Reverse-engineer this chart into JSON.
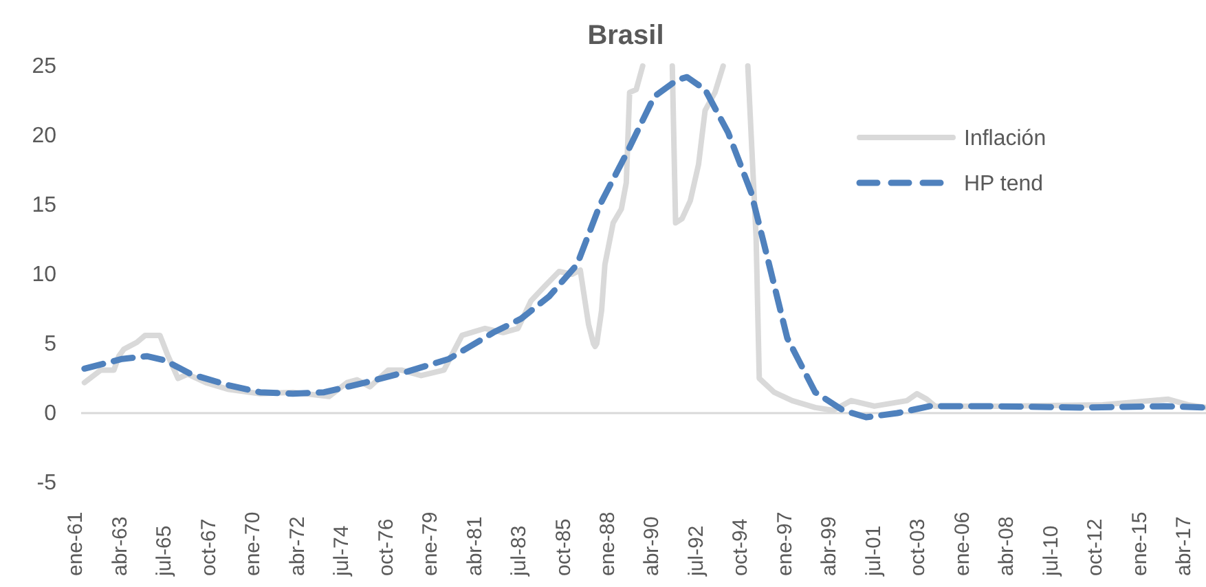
{
  "chart_data": {
    "type": "line",
    "title": "Brasil",
    "xlim": [
      "1960-11",
      "2017-12"
    ],
    "xticks": [
      {
        "value": "1961-01",
        "label": "ene-61"
      },
      {
        "value": "1963-04",
        "label": "abr-63"
      },
      {
        "value": "1965-07",
        "label": "jul-65"
      },
      {
        "value": "1967-10",
        "label": "oct-67"
      },
      {
        "value": "1970-01",
        "label": "ene-70"
      },
      {
        "value": "1972-04",
        "label": "abr-72"
      },
      {
        "value": "1974-07",
        "label": "jul-74"
      },
      {
        "value": "1976-10",
        "label": "oct-76"
      },
      {
        "value": "1979-01",
        "label": "ene-79"
      },
      {
        "value": "1981-04",
        "label": "abr-81"
      },
      {
        "value": "1983-07",
        "label": "jul-83"
      },
      {
        "value": "1985-10",
        "label": "oct-85"
      },
      {
        "value": "1988-01",
        "label": "ene-88"
      },
      {
        "value": "1990-04",
        "label": "abr-90"
      },
      {
        "value": "1992-07",
        "label": "jul-92"
      },
      {
        "value": "1994-10",
        "label": "oct-94"
      },
      {
        "value": "1997-01",
        "label": "ene-97"
      },
      {
        "value": "1999-04",
        "label": "abr-99"
      },
      {
        "value": "2001-07",
        "label": "jul-01"
      },
      {
        "value": "2003-10",
        "label": "oct-03"
      },
      {
        "value": "2006-01",
        "label": "ene-06"
      },
      {
        "value": "2008-04",
        "label": "abr-08"
      },
      {
        "value": "2010-07",
        "label": "jul-10"
      },
      {
        "value": "2012-10",
        "label": "oct-12"
      },
      {
        "value": "2015-01",
        "label": "ene-15"
      },
      {
        "value": "2017-04",
        "label": "abr-17"
      }
    ],
    "ylim": [
      -5,
      25
    ],
    "yticks": [
      -5,
      0,
      5,
      10,
      15,
      20,
      25
    ],
    "legend": "right",
    "series": [
      {
        "name": "Inflación",
        "color": "#d9d9d9",
        "line_style": "solid",
        "x": [
          "1961-01",
          "1961-11",
          "1962-07",
          "1962-10",
          "1963-01",
          "1963-09",
          "1964-02",
          "1964-11",
          "1965-04",
          "1965-10",
          "1966-04",
          "1967-03",
          "1968-05",
          "1969-12",
          "1971-08",
          "1973-06",
          "1974-05",
          "1974-11",
          "1975-07",
          "1976-06",
          "1977-02",
          "1978-02",
          "1979-04",
          "1980-03",
          "1981-05",
          "1982-04",
          "1983-01",
          "1983-09",
          "1984-05",
          "1985-02",
          "1985-10",
          "1986-03",
          "1986-08",
          "1986-11",
          "1986-12",
          "1987-01",
          "1987-04",
          "1987-06",
          "1987-11",
          "1988-04",
          "1988-07",
          "1988-09",
          "1989-01",
          "1989-05",
          "1990-02",
          "1990-11",
          "1991-01",
          "1991-05",
          "1991-10",
          "1992-03",
          "1992-07",
          "1993-01",
          "1993-06",
          "1994-01",
          "1994-09",
          "1995-02",
          "1995-04",
          "1996-01",
          "1996-12",
          "1998-02",
          "1999-01",
          "1999-12",
          "2001-02",
          "2002-10",
          "2003-04",
          "2003-10",
          "2004-03",
          "2007-09",
          "2012-09",
          "2016-01",
          "2017-01",
          "2017-12"
        ],
        "values": [
          2.2,
          3.1,
          3.1,
          4.1,
          4.6,
          5.1,
          5.6,
          5.6,
          4.1,
          2.5,
          2.8,
          2.2,
          1.7,
          1.4,
          1.5,
          1.2,
          2.2,
          2.4,
          1.9,
          3.1,
          3.1,
          2.7,
          3.1,
          5.6,
          6.1,
          5.8,
          6.1,
          8.1,
          9.1,
          10.2,
          10.0,
          10.3,
          6.4,
          5.0,
          4.8,
          5.0,
          7.4,
          10.7,
          13.7,
          14.7,
          16.6,
          23.1,
          23.3,
          25,
          null,
          25,
          13.7,
          14.0,
          15.3,
          17.9,
          21.8,
          23.1,
          25,
          null,
          25,
          12.7,
          2.5,
          1.5,
          0.9,
          0.4,
          0.2,
          0.9,
          0.5,
          0.9,
          1.4,
          1.0,
          0.5,
          0.5,
          0.6,
          1.0,
          0.6,
          0.4
        ]
      },
      {
        "name": "HP tend",
        "color": "#4f81bd",
        "line_style": "dashed",
        "x": [
          "1961-01",
          "1962-12",
          "1964-03",
          "1965-02",
          "1966-06",
          "1968-05",
          "1969-12",
          "1971-08",
          "1973-03",
          "1975-04",
          "1977-06",
          "1979-07",
          "1981-10",
          "1983-03",
          "1984-08",
          "1986-01",
          "1987-03",
          "1988-08",
          "1989-12",
          "1991-02",
          "1991-08",
          "1992-07",
          "1993-09",
          "1994-11",
          "1995-10",
          "1996-09",
          "1998-02",
          "1999-07",
          "2000-09",
          "2002-04",
          "2003-12",
          "2006-12",
          "2011-08",
          "2015-10",
          "2017-12"
        ],
        "values": [
          3.2,
          3.9,
          4.1,
          3.8,
          2.8,
          2.0,
          1.5,
          1.4,
          1.5,
          2.2,
          3.0,
          3.9,
          5.8,
          6.8,
          8.4,
          10.7,
          15.0,
          18.9,
          22.8,
          24.0,
          24.2,
          23.3,
          20.2,
          15.9,
          10.7,
          5.4,
          1.5,
          0.2,
          -0.3,
          0.0,
          0.5,
          0.5,
          0.4,
          0.5,
          0.4
        ]
      }
    ]
  }
}
